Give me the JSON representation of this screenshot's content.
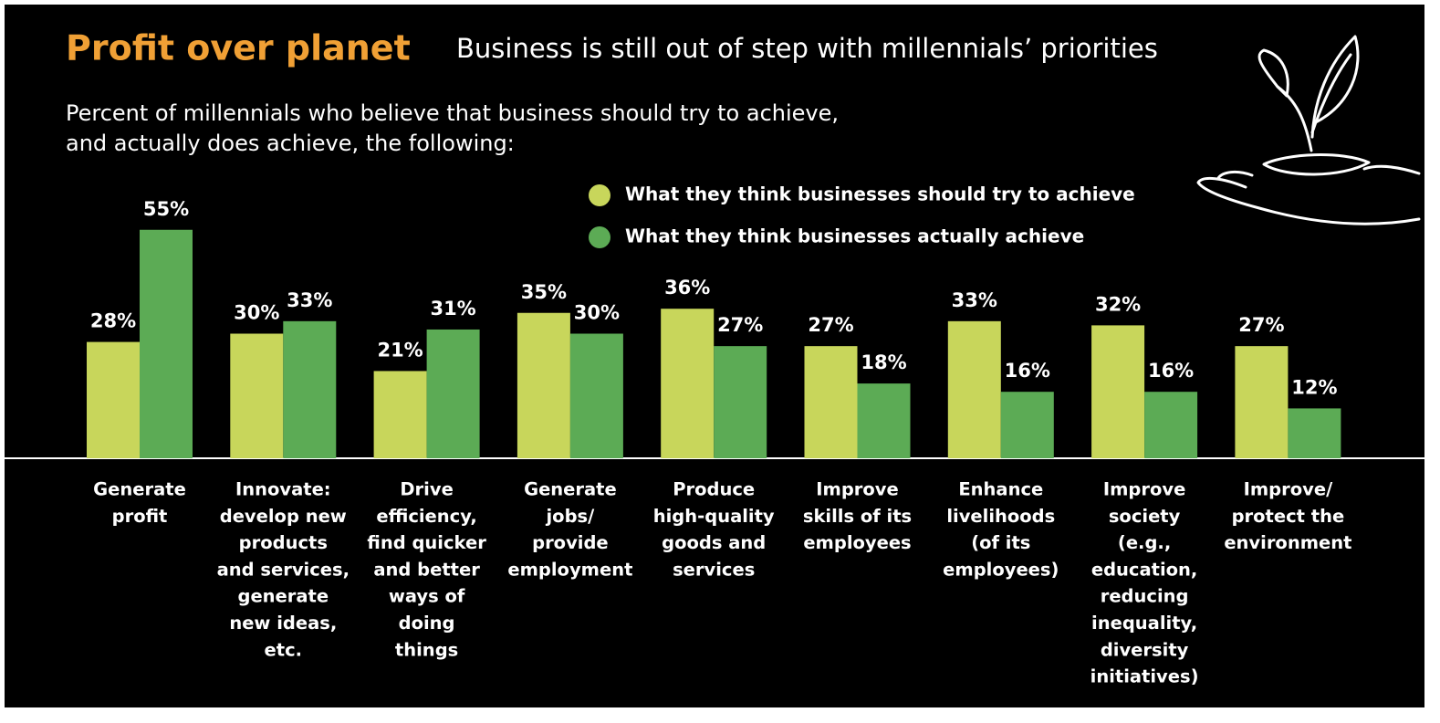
{
  "chart_data": {
    "type": "bar",
    "title": "Profit over planet",
    "subtitle": "Business is still out of step with millennials’ priorities",
    "description": [
      "Percent of millennials who believe that business should try to achieve,",
      "and actually does achieve, the following:"
    ],
    "categories": [
      [
        "Generate",
        "profit"
      ],
      [
        "Innovate:",
        "develop new",
        "products",
        "and services,",
        "generate",
        "new ideas,",
        "etc."
      ],
      [
        "Drive",
        "efficiency,",
        "find quicker",
        "and better",
        "ways of",
        "doing",
        "things"
      ],
      [
        "Generate",
        "jobs/",
        "provide",
        "employment"
      ],
      [
        "Produce",
        "high-quality",
        "goods and",
        "services"
      ],
      [
        "Improve",
        "skills of its",
        "employees"
      ],
      [
        "Enhance",
        "livelihoods",
        "(of its",
        "employees)"
      ],
      [
        "Improve",
        "society",
        "(e.g.,",
        "education,",
        "reducing",
        "inequality,",
        "diversity",
        "initiatives)"
      ],
      [
        "Improve/",
        "protect the",
        "environment"
      ]
    ],
    "series": [
      {
        "name": "What they think businesses should try to achieve",
        "color": "#c8d65b",
        "values": [
          28,
          30,
          21,
          35,
          36,
          27,
          33,
          32,
          27
        ],
        "value_labels": [
          "28%",
          "30%",
          "21%",
          "35%",
          "36%",
          "27%",
          "33%",
          "32%",
          "27%"
        ]
      },
      {
        "name": "What they think businesses actually achieve",
        "color": "#5cab55",
        "values": [
          55,
          33,
          31,
          30,
          27,
          18,
          16,
          16,
          12
        ],
        "value_labels": [
          "55%",
          "33%",
          "31%",
          "30%",
          "27%",
          "18%",
          "16%",
          "16%",
          "12%"
        ]
      }
    ]
  }
}
